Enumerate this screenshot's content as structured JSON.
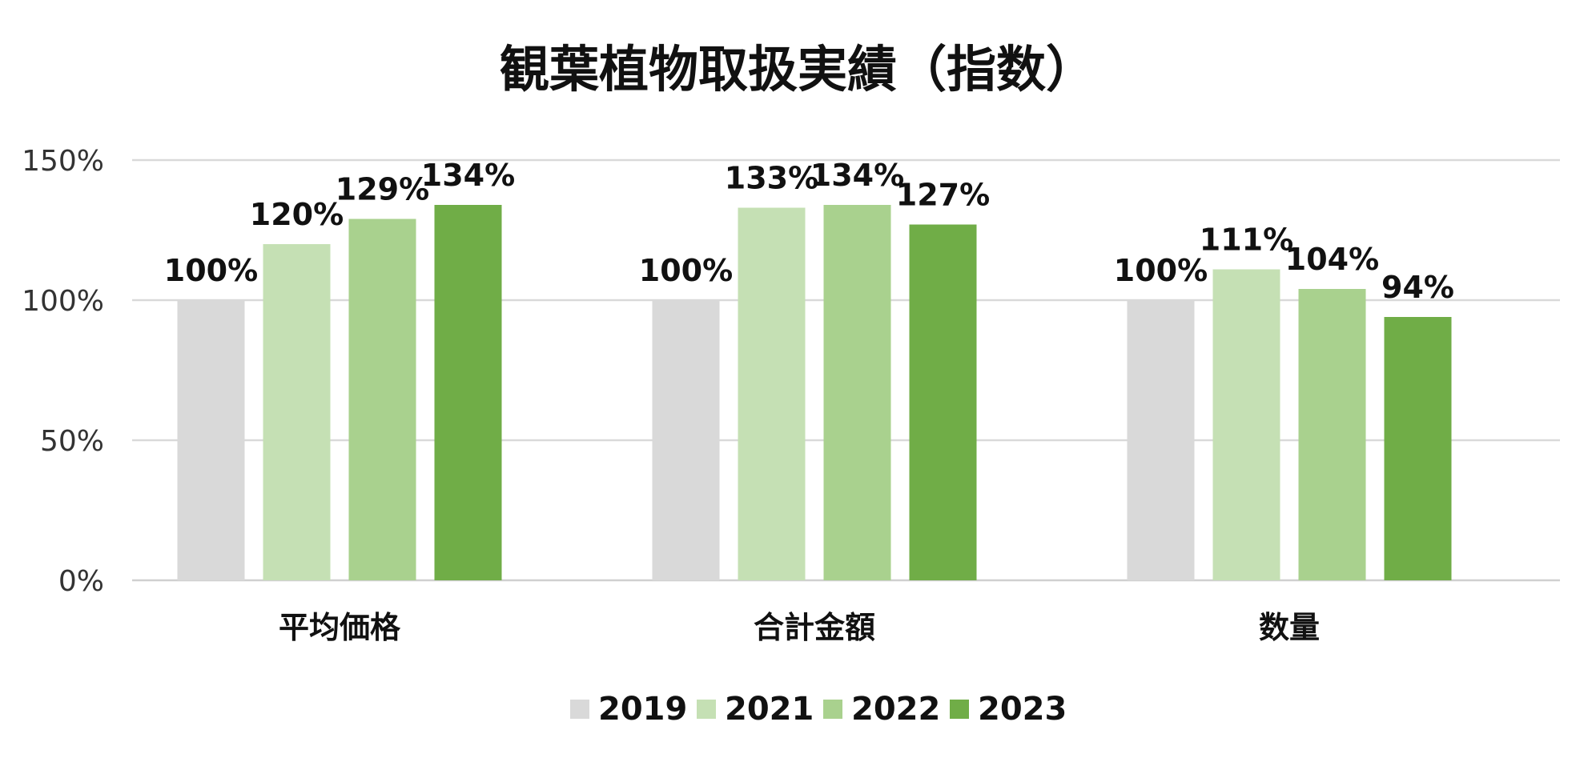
{
  "chart_data": {
    "type": "bar",
    "title": "観葉植物取扱実績（指数）",
    "categories": [
      "平均価格",
      "合計金額",
      "数量"
    ],
    "series": [
      {
        "name": "2019",
        "values": [
          100,
          100,
          100
        ],
        "color": "#d9d9d9"
      },
      {
        "name": "2021",
        "values": [
          120,
          133,
          111
        ],
        "color": "#c5e0b4"
      },
      {
        "name": "2022",
        "values": [
          129,
          134,
          104
        ],
        "color": "#a9d18e"
      },
      {
        "name": "2023",
        "values": [
          134,
          127,
          94
        ],
        "color": "#70ad47"
      }
    ],
    "data_labels": [
      [
        "100%",
        "100%",
        "100%"
      ],
      [
        "120%",
        "133%",
        "111%"
      ],
      [
        "129%",
        "134%",
        "104%"
      ],
      [
        "134%",
        "127%",
        "94%"
      ]
    ],
    "yticks": [
      0,
      50,
      100,
      150
    ],
    "ytick_labels": [
      "0%",
      "50%",
      "100%",
      "150%"
    ],
    "ylim": [
      0,
      150
    ],
    "xlabel": "",
    "ylabel": "",
    "grid": true,
    "legend_position": "bottom-center"
  }
}
